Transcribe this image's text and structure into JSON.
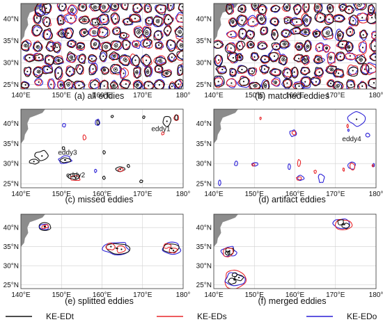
{
  "xTicks": [
    "140°E",
    "150°E",
    "160°E",
    "170°E",
    "180°"
  ],
  "yTicks": [
    "25°N",
    "30°N",
    "35°N",
    "40°N"
  ],
  "legend": [
    {
      "label": "KE-EDt",
      "color": "#111111"
    },
    {
      "label": "KE-EDs",
      "color": "#e8262a"
    },
    {
      "label": "KE-EDo",
      "color": "#2a1fd6"
    }
  ],
  "colors": {
    "t": "#111111",
    "s": "#e8262a",
    "o": "#2a1fd6",
    "land": "#8c8c8c",
    "grid": "#cfcfcf"
  },
  "panels": [
    {
      "id": "a",
      "caption": "(a) all eddies",
      "annotations": [],
      "dense": true,
      "seed": 11
    },
    {
      "id": "b",
      "caption": "(b) matched eddies",
      "annotations": [],
      "dense": true,
      "seed": 29
    },
    {
      "id": "c",
      "caption": "(c) missed eddies",
      "annotations": [
        {
          "text": "eddy1",
          "lon": 174.5,
          "lat": 38.1
        },
        {
          "text": "eddy3",
          "lon": 151.5,
          "lat": 32.2
        },
        {
          "text": "eddy2",
          "lon": 153.5,
          "lat": 26.6
        }
      ],
      "eddies": [
        {
          "lon": 143.2,
          "lat": 30.5,
          "rx": 1.2,
          "ry": 0.6,
          "set": "t"
        },
        {
          "lon": 145.2,
          "lat": 31.9,
          "rx": 1.6,
          "ry": 1.2,
          "set": "t"
        },
        {
          "lon": 150.8,
          "lat": 30.9,
          "rx": 1.7,
          "ry": 0.9,
          "set": "o"
        },
        {
          "lon": 151.0,
          "lat": 30.9,
          "rx": 1.2,
          "ry": 0.6,
          "set": "t"
        },
        {
          "lon": 153.5,
          "lat": 26.4,
          "rx": 1.1,
          "ry": 0.7,
          "set": "s"
        },
        {
          "lon": 153.2,
          "lat": 26.8,
          "rx": 1.5,
          "ry": 0.8,
          "set": "t"
        },
        {
          "lon": 150.6,
          "lat": 39.5,
          "rx": 0.4,
          "ry": 0.5,
          "set": "o"
        },
        {
          "lon": 150.5,
          "lat": 33.8,
          "rx": 0.3,
          "ry": 0.4,
          "set": "t"
        },
        {
          "lon": 155.7,
          "lat": 36.5,
          "rx": 0.4,
          "ry": 0.6,
          "set": "s"
        },
        {
          "lon": 158.9,
          "lat": 40.2,
          "rx": 0.5,
          "ry": 0.8,
          "set": "o"
        },
        {
          "lon": 159.0,
          "lat": 40.2,
          "rx": 0.3,
          "ry": 0.6,
          "set": "t"
        },
        {
          "lon": 158.4,
          "lat": 28.2,
          "rx": 0.3,
          "ry": 0.4,
          "set": "o"
        },
        {
          "lon": 160.5,
          "lat": 32.8,
          "rx": 0.3,
          "ry": 0.4,
          "set": "t"
        },
        {
          "lon": 160.5,
          "lat": 26.5,
          "rx": 0.3,
          "ry": 0.4,
          "set": "t"
        },
        {
          "lon": 164.5,
          "lat": 28.6,
          "rx": 1.0,
          "ry": 0.6,
          "set": "t"
        },
        {
          "lon": 164.6,
          "lat": 28.5,
          "rx": 0.7,
          "ry": 0.4,
          "set": "s"
        },
        {
          "lon": 166.5,
          "lat": 29.4,
          "rx": 0.3,
          "ry": 0.4,
          "set": "t"
        },
        {
          "lon": 162.5,
          "lat": 41.7,
          "rx": 0.3,
          "ry": 0.3,
          "set": "t"
        },
        {
          "lon": 169.7,
          "lat": 25.6,
          "rx": 0.4,
          "ry": 0.3,
          "set": "t"
        },
        {
          "lon": 170.3,
          "lat": 41.5,
          "rx": 0.3,
          "ry": 0.3,
          "set": "t"
        },
        {
          "lon": 176.0,
          "lat": 40.5,
          "rx": 1.0,
          "ry": 1.2,
          "set": "t"
        },
        {
          "lon": 178.3,
          "lat": 41.4,
          "rx": 0.6,
          "ry": 0.8,
          "set": "s"
        },
        {
          "lon": 178.3,
          "lat": 41.4,
          "rx": 0.4,
          "ry": 0.6,
          "set": "t"
        },
        {
          "lon": 175.0,
          "lat": 37.5,
          "rx": 0.3,
          "ry": 0.4,
          "set": "s"
        }
      ]
    },
    {
      "id": "d",
      "caption": "(d) artifact eddies",
      "annotations": [
        {
          "text": "eddy4",
          "lon": 174.0,
          "lat": 35.6
        }
      ],
      "eddies": [
        {
          "lon": 141.5,
          "lat": 25.2,
          "rx": 0.3,
          "ry": 0.6,
          "set": "o"
        },
        {
          "lon": 145.5,
          "lat": 30.0,
          "rx": 0.4,
          "ry": 0.6,
          "set": "o"
        },
        {
          "lon": 150.2,
          "lat": 29.8,
          "rx": 0.8,
          "ry": 0.4,
          "set": "o"
        },
        {
          "lon": 149.8,
          "lat": 29.7,
          "rx": 0.4,
          "ry": 0.3,
          "set": "s"
        },
        {
          "lon": 151.5,
          "lat": 41.2,
          "rx": 0.2,
          "ry": 0.3,
          "set": "s"
        },
        {
          "lon": 159.5,
          "lat": 37.5,
          "rx": 0.8,
          "ry": 0.8,
          "set": "o"
        },
        {
          "lon": 159.8,
          "lat": 37.6,
          "rx": 0.5,
          "ry": 0.5,
          "set": "s"
        },
        {
          "lon": 158.6,
          "lat": 29.2,
          "rx": 0.3,
          "ry": 0.7,
          "set": "o"
        },
        {
          "lon": 161.0,
          "lat": 30.2,
          "rx": 0.4,
          "ry": 0.8,
          "set": "s"
        },
        {
          "lon": 161.3,
          "lat": 26.5,
          "rx": 0.9,
          "ry": 0.6,
          "set": "o"
        },
        {
          "lon": 161.0,
          "lat": 26.3,
          "rx": 0.6,
          "ry": 0.4,
          "set": "s"
        },
        {
          "lon": 165.0,
          "lat": 28.0,
          "rx": 0.3,
          "ry": 0.4,
          "set": "s"
        },
        {
          "lon": 166.5,
          "lat": 26.3,
          "rx": 0.7,
          "ry": 1.2,
          "set": "o"
        },
        {
          "lon": 172.0,
          "lat": 28.5,
          "rx": 0.2,
          "ry": 0.4,
          "set": "s"
        },
        {
          "lon": 174.0,
          "lat": 29.5,
          "rx": 0.9,
          "ry": 1.0,
          "set": "o"
        },
        {
          "lon": 174.2,
          "lat": 29.3,
          "rx": 0.6,
          "ry": 0.8,
          "set": "s"
        },
        {
          "lon": 173.0,
          "lat": 39.3,
          "rx": 0.2,
          "ry": 0.4,
          "set": "s"
        },
        {
          "lon": 173.2,
          "lat": 38.3,
          "rx": 0.2,
          "ry": 0.3,
          "set": "o"
        },
        {
          "lon": 175.2,
          "lat": 41.0,
          "rx": 2.0,
          "ry": 1.6,
          "set": "o"
        },
        {
          "lon": 178.0,
          "lat": 37.0,
          "rx": 0.5,
          "ry": 0.5,
          "set": "o"
        },
        {
          "lon": 179.4,
          "lat": 29.6,
          "rx": 0.2,
          "ry": 0.4,
          "set": "o"
        },
        {
          "lon": 179.2,
          "lat": 29.5,
          "rx": 0.2,
          "ry": 0.3,
          "set": "s"
        }
      ]
    },
    {
      "id": "e",
      "caption": "(e) splitted eddies",
      "annotations": [],
      "eddies": [
        {
          "lon": 146.0,
          "lat": 40.3,
          "rx": 1.6,
          "ry": 1.0,
          "set": "t"
        },
        {
          "lon": 145.8,
          "lat": 40.2,
          "rx": 1.2,
          "ry": 0.8,
          "set": "o"
        },
        {
          "lon": 145.6,
          "lat": 40.1,
          "rx": 0.5,
          "ry": 0.5,
          "set": "s"
        },
        {
          "lon": 146.3,
          "lat": 40.4,
          "rx": 0.5,
          "ry": 0.4,
          "set": "s"
        },
        {
          "lon": 163.5,
          "lat": 34.6,
          "rx": 3.0,
          "ry": 1.6,
          "set": "o"
        },
        {
          "lon": 163.8,
          "lat": 34.5,
          "rx": 2.7,
          "ry": 1.4,
          "set": "t"
        },
        {
          "lon": 162.2,
          "lat": 35.0,
          "rx": 1.1,
          "ry": 0.9,
          "set": "s"
        },
        {
          "lon": 164.8,
          "lat": 34.3,
          "rx": 1.2,
          "ry": 0.9,
          "set": "s"
        },
        {
          "lon": 177.2,
          "lat": 34.5,
          "rx": 2.3,
          "ry": 1.6,
          "set": "o"
        },
        {
          "lon": 177.0,
          "lat": 34.6,
          "rx": 2.0,
          "ry": 1.3,
          "set": "t"
        },
        {
          "lon": 176.0,
          "lat": 35.2,
          "rx": 0.9,
          "ry": 0.6,
          "set": "s"
        },
        {
          "lon": 177.6,
          "lat": 34.0,
          "rx": 1.0,
          "ry": 0.7,
          "set": "s"
        }
      ]
    },
    {
      "id": "f",
      "caption": "(f) merged eddies",
      "annotations": [],
      "eddies": [
        {
          "lon": 143.7,
          "lat": 33.7,
          "rx": 1.8,
          "ry": 1.3,
          "set": "o"
        },
        {
          "lon": 143.9,
          "lat": 33.9,
          "rx": 1.0,
          "ry": 0.8,
          "set": "t"
        },
        {
          "lon": 143.4,
          "lat": 33.3,
          "rx": 0.6,
          "ry": 0.5,
          "set": "t"
        },
        {
          "lon": 143.6,
          "lat": 33.6,
          "rx": 1.5,
          "ry": 1.1,
          "set": "s"
        },
        {
          "lon": 145.0,
          "lat": 26.4,
          "rx": 2.6,
          "ry": 2.2,
          "set": "s"
        },
        {
          "lon": 145.1,
          "lat": 26.3,
          "rx": 2.3,
          "ry": 1.9,
          "set": "o"
        },
        {
          "lon": 144.5,
          "lat": 25.9,
          "rx": 0.9,
          "ry": 0.8,
          "set": "t"
        },
        {
          "lon": 146.2,
          "lat": 26.9,
          "rx": 1.0,
          "ry": 0.8,
          "set": "t"
        },
        {
          "lon": 145.2,
          "lat": 27.6,
          "rx": 0.6,
          "ry": 0.5,
          "set": "t"
        },
        {
          "lon": 171.8,
          "lat": 41.0,
          "rx": 2.1,
          "ry": 1.5,
          "set": "o"
        },
        {
          "lon": 172.2,
          "lat": 40.8,
          "rx": 2.2,
          "ry": 1.4,
          "set": "s"
        },
        {
          "lon": 171.3,
          "lat": 41.4,
          "rx": 0.8,
          "ry": 0.7,
          "set": "t"
        },
        {
          "lon": 172.6,
          "lat": 40.4,
          "rx": 0.9,
          "ry": 0.7,
          "set": "t"
        }
      ]
    }
  ]
}
